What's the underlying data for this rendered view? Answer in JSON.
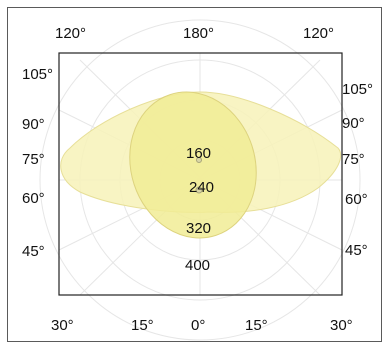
{
  "diagram": {
    "top_angle_labels": [
      "120°",
      "180°",
      "120°"
    ],
    "bottom_angle_labels": [
      "30°",
      "15°",
      "0°",
      "15°",
      "30°"
    ],
    "left_angle_labels": [
      "105°",
      "90°",
      "75°",
      "60°",
      "45°"
    ],
    "right_angle_labels": [
      "105°",
      "90°",
      "75°",
      "60°",
      "45°"
    ],
    "radial_values": [
      "160",
      "240",
      "320",
      "400"
    ],
    "colors": {
      "wide_lobe_fill": "#f7f2b8",
      "narrow_lobe_fill": "#f1ec95",
      "grid_line": "#e4e4e4",
      "plot_border": "#222222"
    }
  }
}
